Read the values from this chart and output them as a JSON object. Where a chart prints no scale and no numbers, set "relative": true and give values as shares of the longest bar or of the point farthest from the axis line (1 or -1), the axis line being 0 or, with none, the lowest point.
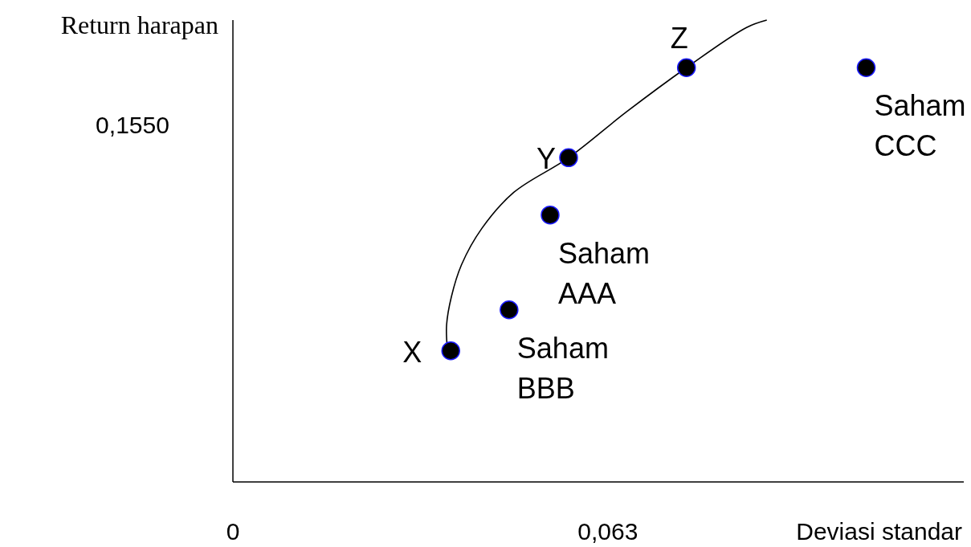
{
  "chart_data": {
    "type": "scatter",
    "xlabel": "Deviasi standar",
    "ylabel": "Return harapan",
    "relative": true,
    "xlim": [
      0,
      0.1228
    ],
    "xticks": [
      {
        "value": 0,
        "label": "0"
      },
      {
        "value": 0.063,
        "label": "0,063"
      }
    ],
    "marker": "circle",
    "series": [
      {
        "type": "line",
        "color": "#000000",
        "marker": "none",
        "x": [
          0.036,
          0.0359,
          0.0367,
          0.0384,
          0.0418,
          0.0472,
          0.0564,
          0.0661,
          0.0762,
          0.0863,
          0.0897
        ],
        "values": [
          0.2925,
          0.3395,
          0.4005,
          0.47,
          0.5485,
          0.627,
          0.702,
          0.801,
          0.897,
          0.984,
          1
        ]
      },
      {
        "color": "#000000",
        "x": [
          0.0366,
          0.0464,
          0.0533,
          0.0564,
          0.0762,
          0.1064
        ],
        "values": [
          0.284,
          0.3725,
          0.578,
          0.702,
          0.897,
          0.897
        ]
      }
    ],
    "annotations": [
      "0,1550",
      {
        "text": "X",
        "x": 0.0366,
        "y": 0.284
      },
      {
        "text": "Saham\nBBB",
        "x": 0.0464,
        "y": 0.3725
      },
      {
        "text": "Saham\nAAA",
        "x": 0.0533,
        "y": 0.578
      },
      {
        "text": "Y",
        "x": 0.0564,
        "y": 0.702
      },
      {
        "text": "Z",
        "x": 0.0762,
        "y": 0.897
      },
      {
        "text": "Saham\nCCC",
        "x": 0.1064,
        "y": 0.897
      }
    ]
  }
}
